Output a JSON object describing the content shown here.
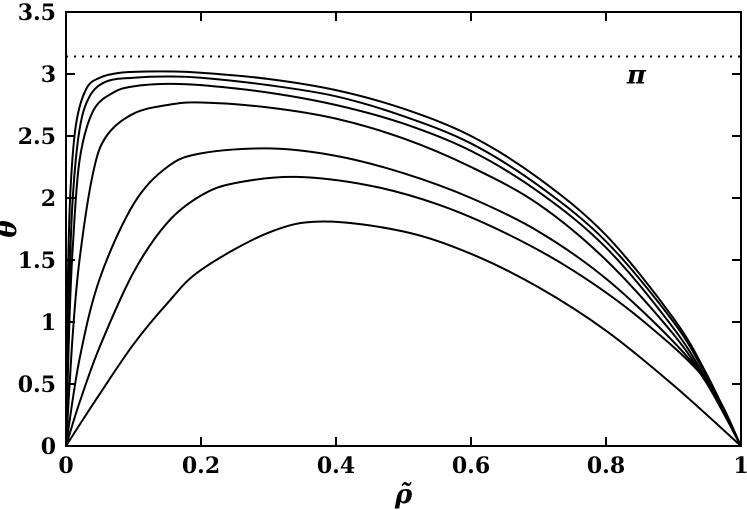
{
  "chart_data": {
    "type": "line",
    "title": "",
    "xlabel": "ρ̃",
    "ylabel": "θ",
    "xlim": [
      0,
      1
    ],
    "ylim": [
      0,
      3.5
    ],
    "x_ticks": [
      0,
      0.2,
      0.4,
      0.6,
      0.8,
      1
    ],
    "x_tick_labels": [
      "0",
      "0.2",
      "0.4",
      "0.6",
      "0.8",
      "1"
    ],
    "y_ticks": [
      0,
      0.5,
      1,
      1.5,
      2,
      2.5,
      3,
      3.5
    ],
    "y_tick_labels": [
      "0",
      "0.5",
      "1",
      "1.5",
      "2",
      "2.5",
      "3",
      "3.5"
    ],
    "grid": false,
    "legend": "none",
    "reference_line": {
      "y": 3.14159,
      "style": "dotted",
      "label": "π"
    },
    "series": [
      {
        "x": [
          0,
          0.02,
          0.05,
          0.1,
          0.15,
          0.2,
          0.3,
          0.38,
          0.5,
          0.6,
          0.7,
          0.8,
          0.9,
          1.0
        ],
        "y": [
          0,
          0.17,
          0.42,
          0.82,
          1.15,
          1.42,
          1.72,
          1.81,
          1.73,
          1.55,
          1.28,
          0.93,
          0.49,
          0
        ]
      },
      {
        "x": [
          0,
          0.02,
          0.05,
          0.1,
          0.15,
          0.2,
          0.25,
          0.34,
          0.45,
          0.55,
          0.65,
          0.75,
          0.85,
          0.95,
          1.0
        ],
        "y": [
          0,
          0.35,
          0.8,
          1.4,
          1.8,
          2.02,
          2.12,
          2.17,
          2.1,
          1.95,
          1.72,
          1.42,
          1.03,
          0.52,
          0
        ]
      },
      {
        "x": [
          0,
          0.02,
          0.05,
          0.1,
          0.15,
          0.2,
          0.3,
          0.4,
          0.5,
          0.6,
          0.7,
          0.8,
          0.9,
          0.95,
          1.0
        ],
        "y": [
          0,
          0.7,
          1.35,
          1.95,
          2.25,
          2.36,
          2.4,
          2.34,
          2.2,
          2.0,
          1.73,
          1.35,
          0.84,
          0.5,
          0
        ]
      },
      {
        "x": [
          0,
          0.01,
          0.02,
          0.04,
          0.06,
          0.1,
          0.15,
          0.2,
          0.3,
          0.4,
          0.5,
          0.6,
          0.7,
          0.8,
          0.9,
          0.95,
          1.0
        ],
        "y": [
          0,
          0.9,
          1.5,
          2.2,
          2.5,
          2.68,
          2.75,
          2.77,
          2.73,
          2.64,
          2.48,
          2.25,
          1.95,
          1.5,
          0.9,
          0.5,
          0
        ]
      },
      {
        "x": [
          0,
          0.005,
          0.01,
          0.02,
          0.04,
          0.07,
          0.1,
          0.15,
          0.2,
          0.3,
          0.4,
          0.5,
          0.6,
          0.7,
          0.8,
          0.9,
          0.95,
          1.0
        ],
        "y": [
          0,
          1.0,
          1.6,
          2.3,
          2.7,
          2.85,
          2.9,
          2.92,
          2.91,
          2.85,
          2.75,
          2.6,
          2.38,
          2.05,
          1.6,
          0.95,
          0.52,
          0
        ]
      },
      {
        "x": [
          0,
          0.005,
          0.01,
          0.02,
          0.035,
          0.06,
          0.1,
          0.15,
          0.2,
          0.3,
          0.4,
          0.5,
          0.6,
          0.7,
          0.8,
          0.9,
          0.95,
          1.0
        ],
        "y": [
          0,
          1.3,
          2.0,
          2.55,
          2.82,
          2.94,
          2.97,
          2.98,
          2.97,
          2.91,
          2.82,
          2.66,
          2.44,
          2.1,
          1.65,
          1.0,
          0.55,
          0
        ]
      },
      {
        "x": [
          0,
          0.003,
          0.007,
          0.015,
          0.03,
          0.05,
          0.08,
          0.12,
          0.16,
          0.2,
          0.3,
          0.4,
          0.5,
          0.6,
          0.7,
          0.8,
          0.9,
          0.95,
          1.0
        ],
        "y": [
          0,
          1.4,
          2.1,
          2.6,
          2.88,
          2.97,
          3.01,
          3.02,
          3.02,
          3.01,
          2.96,
          2.87,
          2.72,
          2.5,
          2.16,
          1.7,
          1.03,
          0.57,
          0
        ]
      }
    ]
  }
}
